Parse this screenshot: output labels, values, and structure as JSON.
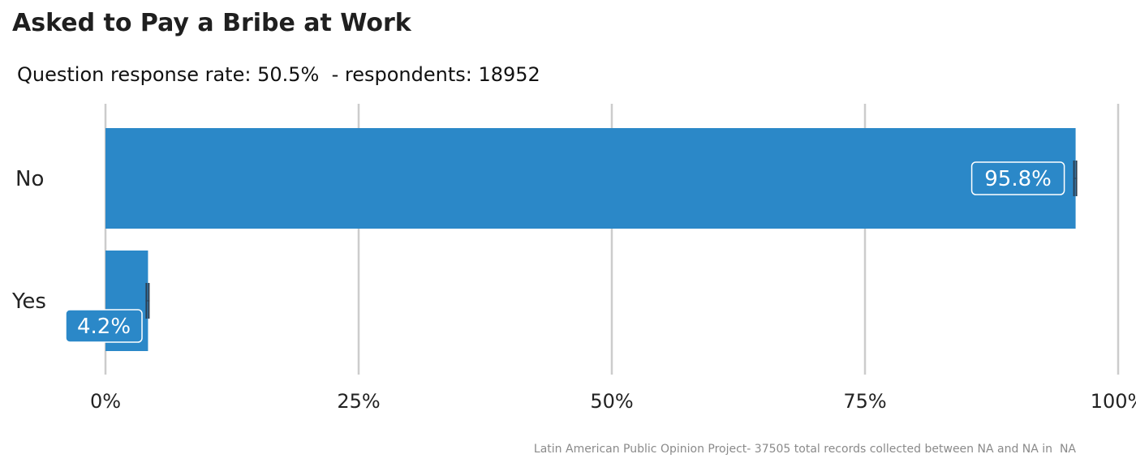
{
  "chart_data": {
    "type": "bar",
    "orientation": "horizontal",
    "title": "Asked to Pay a Bribe at Work",
    "subtitle": "Question response rate: 50.5%  - respondents: 18952",
    "caption": "Latin American Public Opinion Project- 37505 total records collected between NA and NA in  NA",
    "categories": [
      "No",
      "Yes"
    ],
    "values": [
      95.8,
      4.2
    ],
    "data_labels": [
      "95.8%",
      "4.2%"
    ],
    "xlim": [
      0,
      100
    ],
    "x_ticks": [
      0,
      25,
      50,
      75,
      100
    ],
    "x_tick_labels": [
      "0%",
      "25%",
      "50%",
      "75%",
      "100%"
    ],
    "grid": true,
    "error_bars": true,
    "bar_color": "#2b88c8",
    "grid_color": "#cccccc",
    "errorbar_color": "#2c3e50"
  }
}
